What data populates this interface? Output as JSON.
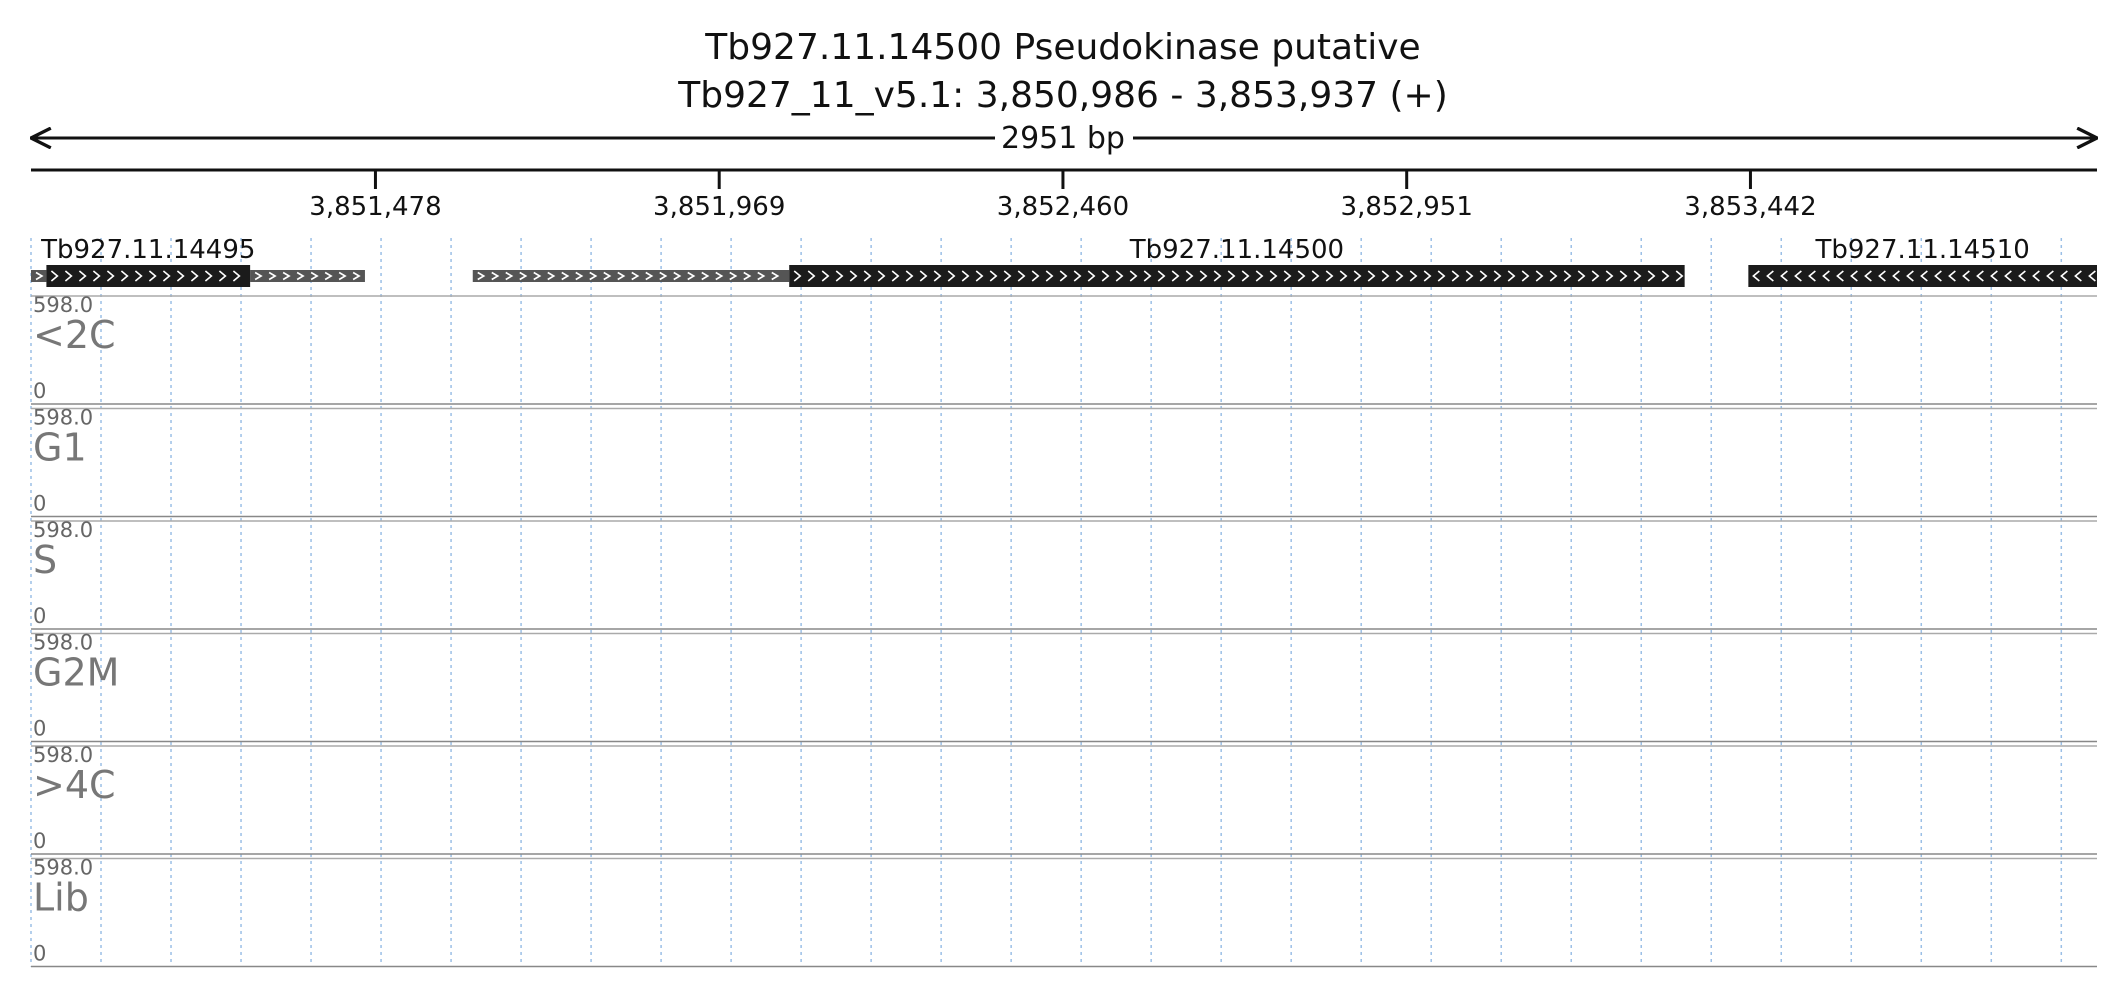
{
  "chart_data": {
    "type": "bar",
    "title": "Tb927.11.14500  Pseudokinase  putative",
    "subtitle": "Tb927_11_v5.1: 3,850,986 - 3,853,937 (+)",
    "length_label": "2951 bp",
    "xlim": [
      3850986,
      3853937
    ],
    "x_ticks": [
      {
        "pos": 3851478,
        "label": "3,851,478"
      },
      {
        "pos": 3851969,
        "label": "3,851,969"
      },
      {
        "pos": 3852460,
        "label": "3,852,460"
      },
      {
        "pos": 3852951,
        "label": "3,852,951"
      },
      {
        "pos": 3853442,
        "label": "3,853,442"
      }
    ],
    "genes": [
      {
        "name": "Tb927.11.14495",
        "strand": "+",
        "cds": [
          3851008,
          3851299
        ],
        "utr": [
          [
            3850986,
            3851008
          ],
          [
            3851299,
            3851463
          ]
        ]
      },
      {
        "name": "Tb927.11.14500",
        "strand": "+",
        "cds": [
          3852069,
          3853348
        ],
        "utr": [
          [
            3851617,
            3852069
          ]
        ]
      },
      {
        "name": "Tb927.11.14510",
        "strand": "-",
        "cds": [
          3853439,
          3853937
        ],
        "utr": []
      }
    ],
    "y_max_label": "598.0",
    "y_min_label": "0",
    "ylim": [
      0,
      598
    ],
    "bin_size": 20,
    "series": [
      {
        "name": "<2C",
        "color": "#fbb369",
        "values": [
          0,
          0,
          0,
          0,
          0,
          0,
          0,
          0,
          0,
          0,
          0,
          0,
          0,
          0,
          0,
          0,
          0,
          0,
          0,
          0,
          0,
          0,
          0,
          0,
          0,
          0,
          0,
          0,
          0,
          0,
          0,
          0,
          0,
          0,
          0,
          0,
          0,
          0,
          0,
          0,
          0,
          0,
          0,
          0,
          0,
          0,
          0,
          0,
          0,
          0,
          0,
          0,
          0,
          0,
          0,
          0,
          0,
          0,
          0,
          0,
          0,
          0,
          0,
          0,
          0,
          0,
          0,
          0,
          0,
          0,
          0,
          0,
          0,
          0,
          0,
          0,
          0,
          0,
          0,
          0,
          0,
          0,
          0,
          0,
          0,
          0,
          0,
          0,
          0,
          0,
          0,
          0,
          0,
          0,
          0,
          0,
          0,
          0,
          0,
          0,
          0,
          0,
          0,
          0,
          0,
          0,
          0,
          0,
          0,
          0,
          0,
          0,
          0,
          0,
          0,
          0,
          0,
          0,
          0,
          0,
          0,
          0,
          0,
          0,
          0,
          0,
          0,
          0,
          0,
          0,
          0,
          0,
          0,
          0,
          0,
          0,
          0,
          0,
          0,
          0,
          0,
          0,
          0,
          0,
          0,
          0,
          0,
          0,
          0,
          0,
          0,
          0,
          0,
          0,
          0
        ]
      },
      {
        "name": "G1",
        "color": "#c99ac9",
        "values": [
          0,
          0,
          0,
          0,
          0,
          0,
          0,
          0,
          0,
          0,
          0,
          0,
          0,
          0,
          0,
          0,
          0,
          0,
          0,
          0,
          0,
          0,
          0,
          0,
          0,
          0,
          0,
          0,
          0,
          0,
          0,
          0,
          0,
          0,
          0,
          0,
          0,
          0,
          0,
          0,
          0,
          0,
          0,
          0,
          0,
          0,
          0,
          0,
          0,
          0,
          0,
          0,
          0,
          0,
          0,
          0,
          0,
          0,
          0,
          0,
          0,
          0,
          0,
          0,
          0,
          0,
          0,
          0,
          0,
          0,
          0,
          0,
          0,
          0,
          0,
          0,
          0,
          0,
          0,
          0,
          0,
          0,
          0,
          0,
          0,
          0,
          0,
          0,
          0,
          0,
          0,
          0,
          0,
          0,
          0,
          0,
          0,
          0,
          0,
          0,
          0,
          0,
          0,
          0,
          0,
          0,
          0,
          0,
          0,
          0,
          0,
          0,
          0,
          0,
          0,
          0,
          0,
          0,
          0,
          0,
          0,
          0,
          0,
          0,
          0,
          0,
          0,
          0,
          0,
          0,
          0,
          0,
          0,
          0,
          0,
          0,
          0,
          0,
          0,
          0,
          0,
          0,
          0,
          0,
          0,
          0,
          0,
          0,
          0,
          0,
          0,
          0,
          0,
          0,
          0
        ]
      },
      {
        "name": "S",
        "color": "#85d18a",
        "values": [
          0,
          0,
          0,
          0,
          0,
          0,
          0,
          0,
          0,
          0,
          0,
          0,
          0,
          0,
          0,
          0,
          0,
          0,
          0,
          0,
          0,
          0,
          0,
          0,
          0,
          0,
          0,
          0,
          0,
          0,
          0,
          0,
          0,
          0,
          0,
          0,
          0,
          0,
          0,
          0,
          0,
          0,
          0,
          0,
          0,
          0,
          0,
          0,
          0,
          0,
          0,
          0,
          0,
          0,
          0,
          0,
          0,
          0,
          0,
          0,
          0,
          0,
          0,
          0,
          0,
          0,
          0,
          0,
          0,
          0,
          0,
          0,
          0,
          0,
          0,
          0,
          0,
          0,
          0,
          0,
          0,
          0,
          0,
          0,
          0,
          0,
          0,
          0,
          0,
          0,
          0,
          0,
          0,
          0,
          0,
          0,
          0,
          0,
          0,
          0,
          0,
          0,
          0,
          0,
          0,
          0,
          0,
          0,
          0,
          0,
          0,
          0,
          0,
          0,
          0,
          0,
          0,
          0,
          0,
          0,
          0,
          0,
          0,
          0,
          0,
          0,
          0,
          0,
          0,
          0,
          0,
          0,
          0,
          0,
          0,
          0,
          0,
          0,
          0,
          0,
          0,
          0,
          0,
          0,
          0,
          0,
          0,
          0,
          0,
          0,
          0,
          0,
          0,
          0,
          0
        ]
      },
      {
        "name": "G2M",
        "color": "#8ec1e6",
        "values": [
          0,
          0,
          0,
          0,
          0,
          0,
          0,
          0,
          0,
          0,
          0,
          0,
          0,
          0,
          0,
          0,
          0,
          0,
          0,
          0,
          0,
          0,
          0,
          0,
          0,
          0,
          0,
          0,
          0,
          0,
          0,
          0,
          0,
          0,
          0,
          0,
          0,
          0,
          0,
          0,
          0,
          0,
          0,
          0,
          0,
          0,
          0,
          0,
          0,
          0,
          0,
          0,
          0,
          0,
          0,
          0,
          0,
          0,
          0,
          0,
          0,
          0,
          0,
          0,
          0,
          0,
          0,
          0,
          0,
          0,
          0,
          0,
          0,
          0,
          0,
          0,
          0,
          0,
          0,
          0,
          0,
          0,
          0,
          0,
          0,
          0,
          0,
          0,
          0,
          0,
          0,
          0,
          0,
          0,
          0,
          0,
          0,
          0,
          0,
          0,
          0,
          0,
          0,
          0,
          0,
          0,
          0,
          0,
          0,
          0,
          0,
          0,
          0,
          0,
          0,
          0,
          0,
          0,
          0,
          0,
          0,
          0,
          0,
          0,
          0,
          0,
          0,
          0,
          0,
          0,
          0,
          0,
          0,
          0,
          0,
          0,
          0,
          0,
          0,
          0,
          0,
          0,
          0,
          0,
          0,
          0,
          0,
          0,
          0,
          0,
          0,
          0,
          0,
          0,
          0
        ]
      },
      {
        "name": ">4C",
        "color": "#f5a3cc",
        "values": [
          0,
          0,
          0,
          0,
          0,
          0,
          0,
          0,
          0,
          0,
          0,
          0,
          0,
          0,
          0,
          0,
          0,
          0,
          0,
          0,
          0,
          0,
          0,
          0,
          0,
          0,
          0,
          0,
          0,
          0,
          0,
          0,
          0,
          0,
          0,
          0,
          0,
          0,
          0,
          0,
          0,
          0,
          0,
          0,
          0,
          0,
          0,
          0,
          0,
          0,
          0,
          0,
          0,
          0,
          0,
          0,
          0,
          0,
          0,
          0,
          0,
          0,
          0,
          0,
          0,
          0,
          0,
          0,
          0,
          0,
          0,
          0,
          0,
          0,
          0,
          0,
          0,
          0,
          0,
          0,
          0,
          0,
          0,
          0,
          0,
          0,
          0,
          0,
          0,
          0,
          0,
          0,
          0,
          0,
          0,
          0,
          0,
          0,
          0,
          0,
          0,
          0,
          0,
          0,
          0,
          0,
          0,
          0,
          0,
          0,
          0,
          0,
          0,
          0,
          0,
          0,
          0,
          0,
          0,
          0,
          0,
          0,
          0,
          0,
          0,
          0,
          0,
          0,
          0,
          0,
          0,
          0,
          0,
          0,
          0,
          0,
          0,
          0,
          0,
          0,
          0,
          0,
          0,
          0,
          0,
          0,
          0,
          0,
          0,
          0,
          0,
          0,
          0,
          0,
          0
        ]
      },
      {
        "name": "Lib",
        "color": "#e6db7a",
        "values": [
          0,
          0,
          0,
          0,
          0,
          0,
          0,
          0,
          0,
          0,
          0,
          0,
          0,
          0,
          0,
          0,
          0,
          0,
          0,
          0,
          0,
          0,
          0,
          0,
          0,
          0,
          0,
          0,
          0,
          0,
          0,
          0,
          0,
          0,
          0,
          0,
          0,
          0,
          0,
          0,
          0,
          0,
          0,
          0,
          0,
          0,
          0,
          0,
          0,
          0,
          0,
          0,
          0,
          0,
          0,
          0,
          0,
          0,
          0,
          0,
          0,
          0,
          0,
          0,
          0,
          0,
          0,
          0,
          0,
          0,
          0,
          0,
          0,
          0,
          0,
          0,
          0,
          0,
          0,
          0,
          0,
          0,
          0,
          0,
          0,
          0,
          0,
          0,
          0,
          0,
          0,
          0,
          0,
          0,
          0,
          0,
          0,
          0,
          0,
          0,
          0,
          0,
          0,
          0,
          0,
          0,
          0,
          0,
          0,
          0,
          0,
          0,
          0,
          0,
          0,
          0,
          0,
          0,
          0,
          0,
          0,
          0,
          0,
          0,
          0,
          0,
          0,
          0,
          0,
          0,
          0,
          0,
          0,
          0,
          0,
          0,
          0,
          0,
          0,
          0,
          0,
          0,
          0,
          0,
          0,
          0,
          0,
          0,
          0,
          0,
          0,
          0,
          0,
          0,
          0
        ]
      }
    ]
  }
}
